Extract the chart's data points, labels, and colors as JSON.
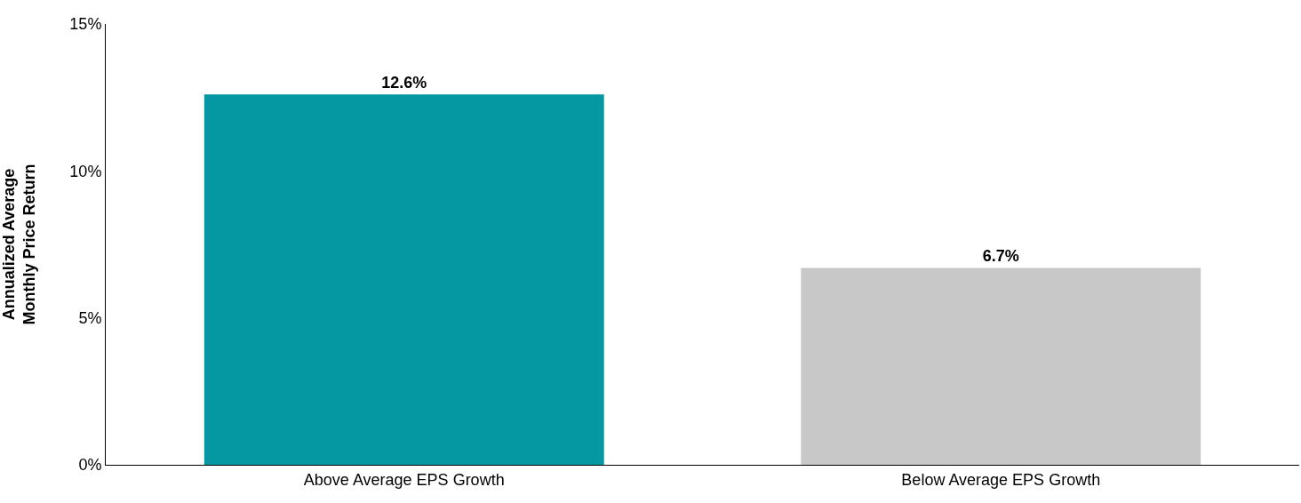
{
  "chart_data": {
    "type": "bar",
    "ylabel": "Annualized Average\nMonthly Price Return",
    "categories": [
      "Above Average EPS Growth",
      "Below Average EPS Growth"
    ],
    "values": [
      12.6,
      6.7
    ],
    "colors": [
      "#0598a3",
      "#c8c8c8"
    ],
    "value_labels": [
      "12.6%",
      "6.7%"
    ],
    "ylim": [
      0,
      15
    ],
    "yticks": [
      {
        "value": 0,
        "label": "0%"
      },
      {
        "value": 5,
        "label": "5%"
      },
      {
        "value": 10,
        "label": "10%"
      },
      {
        "value": 15,
        "label": "15%"
      }
    ]
  }
}
